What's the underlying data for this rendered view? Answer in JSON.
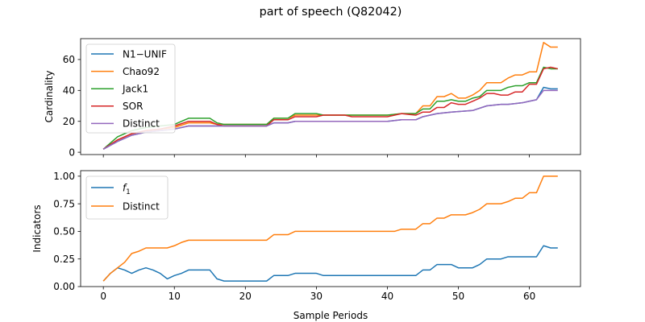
{
  "chart_data": {
    "title": "part of speech (Q82042)",
    "xlabel": "Sample Periods",
    "xlim": [
      -3.2,
      67.2
    ],
    "xticks": [
      0,
      10,
      20,
      30,
      40,
      50,
      60
    ],
    "grid": false,
    "panels": [
      {
        "type": "line",
        "ylabel": "Cardinality",
        "ylim": [
          -1.5,
          73.5
        ],
        "yticks": [
          0,
          20,
          40,
          60
        ],
        "legend": "upper left",
        "series": [
          {
            "name": "N1−UNIF",
            "color": "#1f77b4",
            "x": [
              0,
              2,
              4,
              6,
              8,
              10,
              12,
              14,
              15,
              16,
              20,
              23,
              24,
              26,
              27,
              30,
              35,
              40,
              42,
              44,
              45,
              47,
              49,
              52,
              54,
              56,
              57,
              59,
              60,
              61,
              62,
              63,
              64
            ],
            "y": [
              2,
              7,
              11,
              13,
              14,
              15,
              17,
              17,
              17,
              17,
              17,
              17,
              19,
              19,
              20,
              20,
              20,
              20,
              21,
              21,
              23,
              25,
              26,
              27,
              30,
              31,
              31,
              32,
              33,
              34,
              42,
              41,
              41
            ]
          },
          {
            "name": "Chao92",
            "color": "#ff7f0e",
            "x": [
              0,
              2,
              4,
              6,
              8,
              10,
              12,
              15,
              16,
              20,
              23,
              24,
              26,
              27,
              30,
              35,
              40,
              42,
              44,
              45,
              46,
              47,
              48,
              49,
              50,
              51,
              52,
              53,
              54,
              56,
              57,
              58,
              59,
              60,
              61,
              62,
              63,
              64
            ],
            "y": [
              2,
              8,
              12,
              14,
              15,
              16,
              19,
              19,
              18,
              18,
              18,
              22,
              22,
              24,
              24,
              24,
              24,
              25,
              25,
              30,
              30,
              36,
              36,
              38,
              35,
              35,
              37,
              40,
              45,
              45,
              48,
              50,
              50,
              52,
              52,
              71,
              68,
              68
            ]
          },
          {
            "name": "Jack1",
            "color": "#2ca02c",
            "x": [
              0,
              2,
              4,
              6,
              8,
              10,
              12,
              15,
              16,
              17,
              23,
              24,
              26,
              27,
              30,
              31,
              35,
              40,
              42,
              44,
              45,
              46,
              47,
              48,
              49,
              50,
              51,
              52,
              53,
              54,
              56,
              57,
              58,
              59,
              60,
              61,
              62,
              63,
              64
            ],
            "y": [
              2,
              10,
              14,
              16,
              17,
              18,
              22,
              22,
              19,
              18,
              18,
              22,
              22,
              25,
              25,
              24,
              24,
              24,
              25,
              25,
              28,
              28,
              33,
              33,
              34,
              33,
              33,
              35,
              36,
              40,
              40,
              42,
              43,
              43,
              45,
              45,
              55,
              54,
              54
            ]
          },
          {
            "name": "SOR",
            "color": "#d62728",
            "x": [
              0,
              2,
              4,
              6,
              8,
              10,
              12,
              14,
              15,
              16,
              17,
              23,
              24,
              26,
              27,
              30,
              31,
              34,
              35,
              40,
              42,
              44,
              45,
              46,
              47,
              48,
              49,
              50,
              51,
              52,
              53,
              54,
              55,
              56,
              57,
              58,
              59,
              60,
              61,
              62,
              63,
              64
            ],
            "y": [
              2,
              8,
              12,
              14,
              15,
              17,
              20,
              20,
              20,
              18,
              17,
              17,
              21,
              21,
              23,
              23,
              24,
              24,
              23,
              23,
              25,
              24,
              26,
              26,
              29,
              29,
              32,
              31,
              31,
              33,
              35,
              38,
              38,
              37,
              37,
              39,
              39,
              44,
              44,
              54,
              55,
              54
            ]
          },
          {
            "name": "Distinct",
            "color": "#9467bd",
            "x": [
              0,
              2,
              4,
              6,
              8,
              10,
              12,
              15,
              16,
              20,
              23,
              24,
              26,
              27,
              30,
              35,
              40,
              42,
              44,
              45,
              47,
              49,
              52,
              54,
              56,
              57,
              59,
              60,
              61,
              62,
              63,
              64
            ],
            "y": [
              2,
              7,
              11,
              13,
              14,
              15,
              17,
              17,
              17,
              17,
              17,
              19,
              19,
              20,
              20,
              20,
              20,
              21,
              21,
              23,
              25,
              26,
              27,
              30,
              31,
              31,
              32,
              33,
              34,
              40,
              40,
              40
            ]
          }
        ]
      },
      {
        "type": "line",
        "ylabel": "Indicators",
        "ylim": [
          0,
          1.05
        ],
        "yticks": [
          0,
          0.25,
          0.5,
          0.75,
          1.0
        ],
        "ytick_labels": [
          "0.00",
          "0.25",
          "0.50",
          "0.75",
          "1.00"
        ],
        "legend": "upper left",
        "series": [
          {
            "name_base": "f",
            "name_sub": "1",
            "color": "#1f77b4",
            "x": [
              0,
              1,
              2,
              3,
              4,
              5,
              6,
              7,
              8,
              9,
              10,
              11,
              12,
              13,
              14,
              15,
              16,
              17,
              18,
              19,
              20,
              21,
              22,
              23,
              24,
              25,
              26,
              27,
              28,
              29,
              30,
              31,
              32,
              40,
              44,
              45,
              46,
              47,
              48,
              49,
              50,
              51,
              52,
              53,
              54,
              55,
              56,
              57,
              58,
              59,
              60,
              61,
              62,
              63,
              64
            ],
            "y": [
              0.05,
              0.12,
              0.17,
              0.15,
              0.12,
              0.15,
              0.17,
              0.15,
              0.12,
              0.07,
              0.1,
              0.12,
              0.15,
              0.15,
              0.15,
              0.15,
              0.07,
              0.05,
              0.05,
              0.05,
              0.05,
              0.05,
              0.05,
              0.05,
              0.1,
              0.1,
              0.1,
              0.12,
              0.12,
              0.12,
              0.12,
              0.1,
              0.1,
              0.1,
              0.1,
              0.15,
              0.15,
              0.2,
              0.2,
              0.2,
              0.17,
              0.17,
              0.17,
              0.2,
              0.25,
              0.25,
              0.25,
              0.27,
              0.27,
              0.27,
              0.27,
              0.27,
              0.37,
              0.35,
              0.35
            ]
          },
          {
            "name": "Distinct",
            "color": "#ff7f0e",
            "x": [
              0,
              1,
              2,
              3,
              4,
              5,
              6,
              7,
              8,
              9,
              10,
              11,
              12,
              13,
              14,
              15,
              16,
              20,
              23,
              24,
              25,
              26,
              27,
              30,
              35,
              40,
              41,
              42,
              43,
              44,
              45,
              46,
              47,
              48,
              49,
              50,
              51,
              52,
              53,
              54,
              55,
              56,
              57,
              58,
              59,
              60,
              61,
              62,
              63,
              64
            ],
            "y": [
              0.05,
              0.12,
              0.17,
              0.22,
              0.3,
              0.32,
              0.35,
              0.35,
              0.35,
              0.35,
              0.37,
              0.4,
              0.42,
              0.42,
              0.42,
              0.42,
              0.42,
              0.42,
              0.42,
              0.47,
              0.47,
              0.47,
              0.5,
              0.5,
              0.5,
              0.5,
              0.5,
              0.52,
              0.52,
              0.52,
              0.57,
              0.57,
              0.62,
              0.62,
              0.65,
              0.65,
              0.65,
              0.67,
              0.7,
              0.75,
              0.75,
              0.75,
              0.77,
              0.8,
              0.8,
              0.85,
              0.85,
              1.0,
              1.0,
              1.0
            ]
          }
        ]
      }
    ]
  }
}
